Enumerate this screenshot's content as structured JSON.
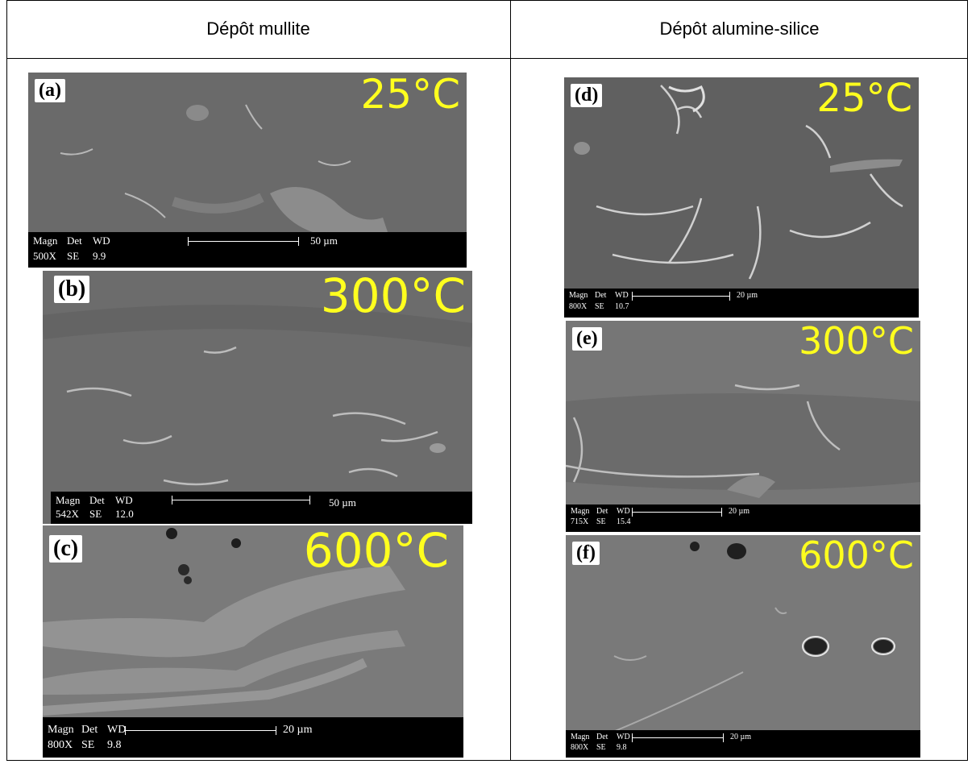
{
  "headers": {
    "left": "Dépôt mullite",
    "right": "Dépôt alumine-silice"
  },
  "images": {
    "a": {
      "label": "(a)",
      "temp": "25°C",
      "magn": "Magn",
      "det": "Det",
      "wd": "WD",
      "magn_val": "500X",
      "det_val": "SE",
      "wd_val": "9.9",
      "scale": "50 µm"
    },
    "b": {
      "label": "(b)",
      "temp": "300°C",
      "magn": "Magn",
      "det": "Det",
      "wd": "WD",
      "magn_val": "542X",
      "det_val": "SE",
      "wd_val": "12.0",
      "scale": "50 µm"
    },
    "c": {
      "label": "(c)",
      "temp": "600°C",
      "magn": "Magn",
      "det": "Det",
      "wd": "WD",
      "magn_val": "800X",
      "det_val": "SE",
      "wd_val": "9.8",
      "scale": "20 µm"
    },
    "d": {
      "label": "(d)",
      "temp": "25°C",
      "magn": "Magn",
      "det": "Det",
      "wd": "WD",
      "magn_val": "800X",
      "det_val": "SE",
      "wd_val": "10.7",
      "scale": "20 µm"
    },
    "e": {
      "label": "(e)",
      "temp": "300°C",
      "magn": "Magn",
      "det": "Det",
      "wd": "WD",
      "magn_val": "715X",
      "det_val": "SE",
      "wd_val": "15.4",
      "scale": "20 µm"
    },
    "f": {
      "label": "(f)",
      "temp": "600°C",
      "magn": "Magn",
      "det": "Det",
      "wd": "WD",
      "magn_val": "800X",
      "det_val": "SE",
      "wd_val": "9.8",
      "scale": "20 µm"
    }
  }
}
